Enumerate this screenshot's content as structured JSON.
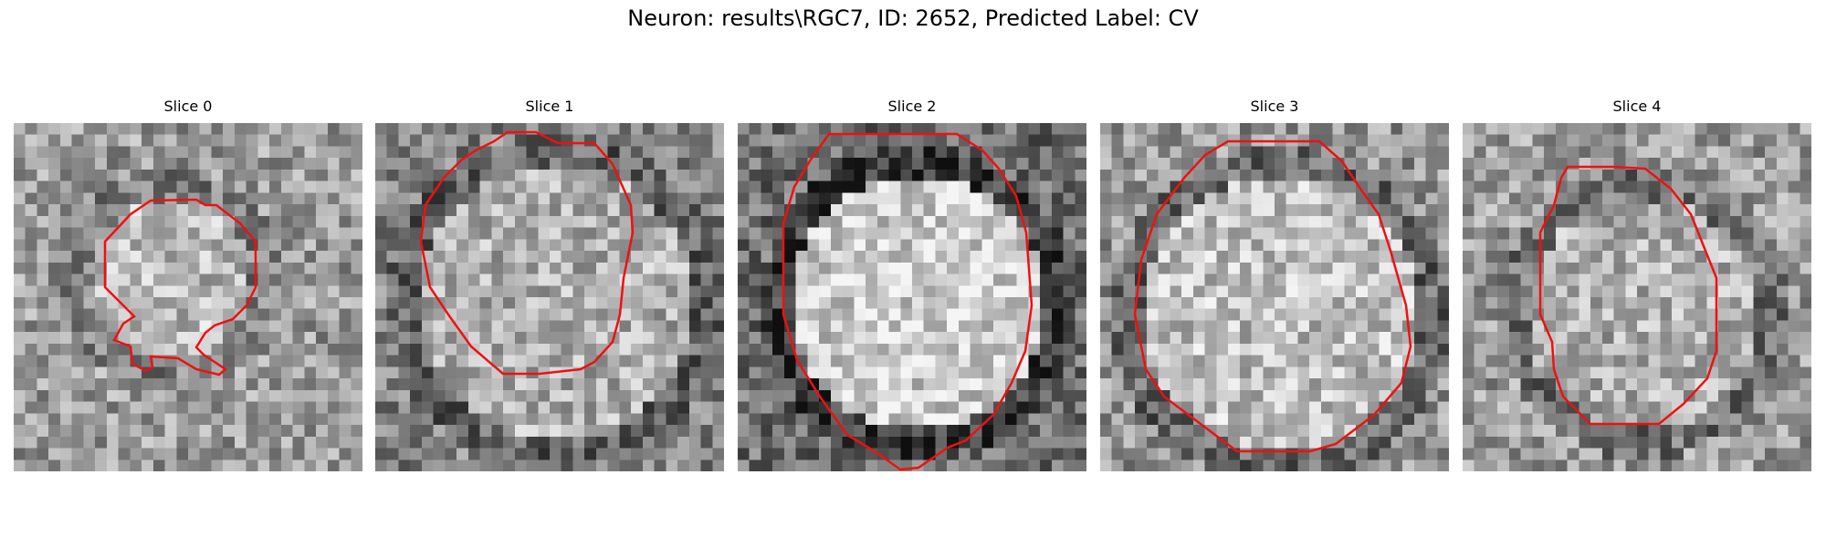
{
  "figure": {
    "title": "Neuron: results\\RGC7, ID: 2652, Predicted Label: CV"
  },
  "contour_color": "#ee1111",
  "image": {
    "kind": "grayscale microscopy crop, pixelated",
    "grid_size": 30
  },
  "panels": [
    {
      "title": "Slice 0"
    },
    {
      "title": "Slice 1"
    },
    {
      "title": "Slice 2"
    },
    {
      "title": "Slice 3"
    },
    {
      "title": "Slice 4"
    }
  ]
}
